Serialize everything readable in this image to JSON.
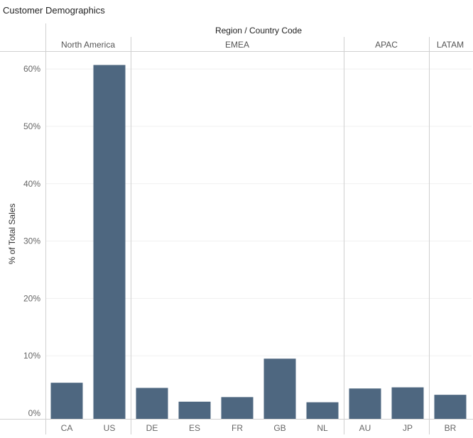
{
  "worksheet": {
    "title": "Customer Demographics"
  },
  "chart_data": {
    "type": "bar",
    "title": "Customer Demographics",
    "column_header": "Region / Country Code",
    "ylabel": "% of Total Sales",
    "ylim": [
      0,
      0.7
    ],
    "y_ticks": [
      0,
      0.1,
      0.2,
      0.3,
      0.4,
      0.5,
      0.6
    ],
    "y_tick_labels": [
      "0%",
      "10%",
      "20%",
      "30%",
      "40%",
      "50%",
      "60%"
    ],
    "grid": true,
    "bar_color": "#4e6780",
    "regions": [
      {
        "name": "North America",
        "countries": [
          "CA",
          "US"
        ]
      },
      {
        "name": "EMEA",
        "countries": [
          "DE",
          "ES",
          "FR",
          "GB",
          "NL"
        ]
      },
      {
        "name": "APAC",
        "countries": [
          "AU",
          "JP"
        ]
      },
      {
        "name": "LATAM",
        "countries": [
          "BR"
        ]
      }
    ],
    "categories": [
      "CA",
      "US",
      "DE",
      "ES",
      "FR",
      "GB",
      "NL",
      "AU",
      "JP",
      "BR"
    ],
    "values": [
      0.053,
      0.607,
      0.044,
      0.02,
      0.028,
      0.095,
      0.019,
      0.043,
      0.045,
      0.032
    ]
  }
}
